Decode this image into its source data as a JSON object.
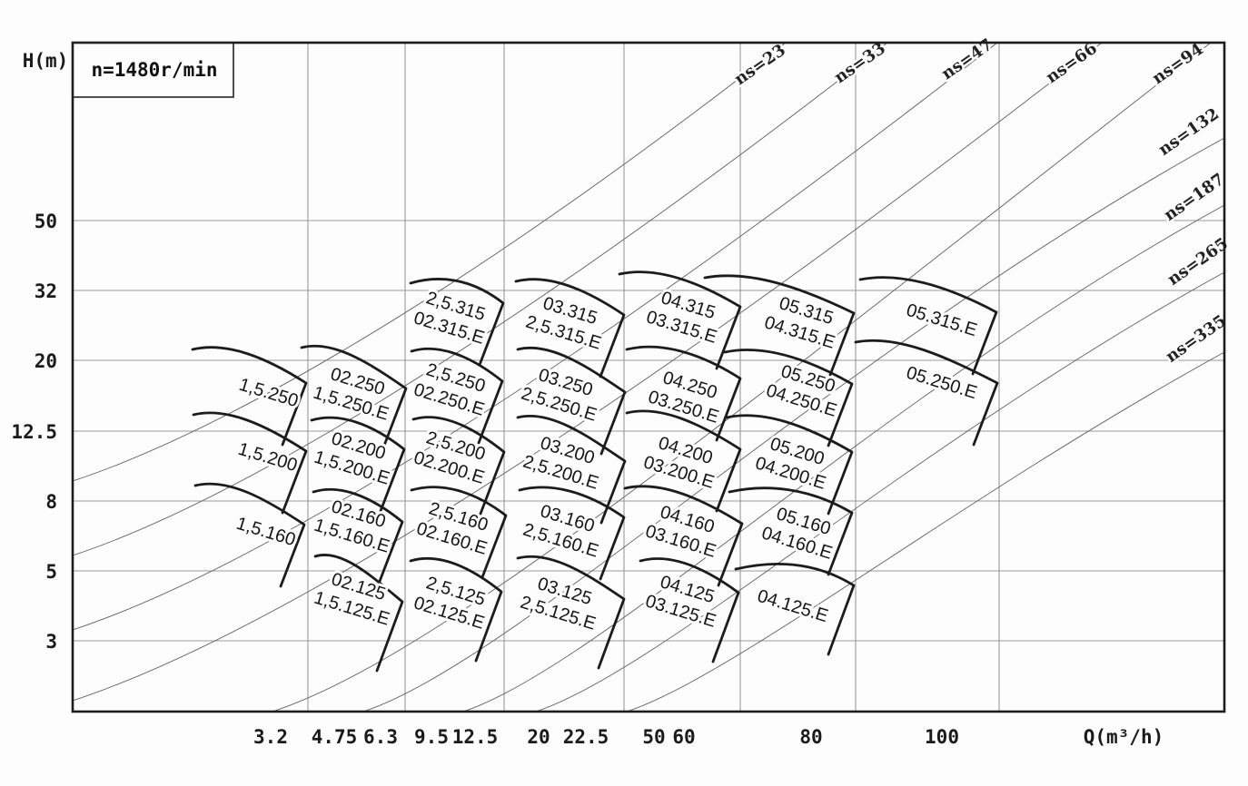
{
  "chart_data": {
    "type": "line",
    "subtype": "pump-selection-range-chart",
    "title": "n=1480r/min",
    "xlabel": "Q(m³/h)",
    "ylabel": "H(m)",
    "frame": {
      "x0": 80,
      "y0": 47,
      "x1": 1348,
      "y1": 784
    },
    "colors": {
      "bg": "#fdfdfd",
      "frame": "#1c1c1c",
      "grid": "#9a9a9a",
      "ns": "#5f5f5f",
      "cell": "#1c1c1c"
    },
    "grid": {
      "v": [
        339,
        446,
        555,
        687,
        815,
        942,
        1100
      ],
      "h": [
        243,
        320,
        397,
        475,
        552,
        629,
        706
      ]
    },
    "y_ticks": [
      {
        "label": "50",
        "y": 243
      },
      {
        "label": "32",
        "y": 320
      },
      {
        "label": "20",
        "y": 397
      },
      {
        "label": "12.5",
        "y": 475
      },
      {
        "label": "8",
        "y": 552
      },
      {
        "label": "5",
        "y": 629
      },
      {
        "label": "3",
        "y": 706
      }
    ],
    "x_ticks": [
      {
        "label": "3.2",
        "x": 298
      },
      {
        "label": "4.75",
        "x": 368
      },
      {
        "label": "6.3",
        "x": 419
      },
      {
        "label": "9.5",
        "x": 475
      },
      {
        "label": "12.5",
        "x": 523
      },
      {
        "label": "20",
        "x": 593
      },
      {
        "label": "22.5",
        "x": 645
      },
      {
        "label": "50",
        "x": 720
      },
      {
        "label": "60",
        "x": 753
      },
      {
        "label": "80",
        "x": 893
      },
      {
        "label": "100",
        "x": 1037
      }
    ],
    "ns_lines": [
      {
        "label": "ns=23",
        "lx": 840,
        "ly": 76,
        "x0": 80,
        "y0": 530,
        "x1": 865,
        "y1": 47,
        "exit": "top"
      },
      {
        "label": "ns=33",
        "lx": 950,
        "ly": 74,
        "x0": 80,
        "y0": 612,
        "x1": 977,
        "y1": 47,
        "exit": "top"
      },
      {
        "label": "ns=47",
        "lx": 1068,
        "ly": 70,
        "x0": 80,
        "y0": 694,
        "x1": 1098,
        "y1": 47,
        "exit": "top"
      },
      {
        "label": "ns=66",
        "lx": 1183,
        "ly": 74,
        "x0": 80,
        "y0": 772,
        "x1": 1213,
        "y1": 47,
        "exit": "top"
      },
      {
        "label": "ns=94",
        "lx": 1300,
        "ly": 75,
        "x0": 300,
        "y0": 784,
        "x1": 1333,
        "y1": 47,
        "exit": "top"
      },
      {
        "label": "ns=132",
        "lx": 1312,
        "ly": 150,
        "x0": 400,
        "y0": 784,
        "x1": 1348,
        "y1": 152,
        "exit": "right"
      },
      {
        "label": "ns=187",
        "lx": 1318,
        "ly": 222,
        "x0": 510,
        "y0": 784,
        "x1": 1348,
        "y1": 226,
        "exit": "right"
      },
      {
        "label": "ns=265",
        "lx": 1322,
        "ly": 293,
        "x0": 590,
        "y0": 784,
        "x1": 1348,
        "y1": 300,
        "exit": "right"
      },
      {
        "label": "ns=335",
        "lx": 1320,
        "ly": 378,
        "x0": 690,
        "y0": 784,
        "x1": 1348,
        "y1": 388,
        "exit": "right"
      }
    ],
    "cells": [
      {
        "labels": [
          "2,5.315",
          "02.315.E"
        ],
        "x1": 452,
        "y1": 312,
        "x2": 554,
        "y2": 334,
        "cx": 497,
        "cy": 353
      },
      {
        "labels": [
          "03.315",
          "2,5.315.E"
        ],
        "x1": 568,
        "y1": 310,
        "x2": 687,
        "y2": 347,
        "cx": 623,
        "cy": 358
      },
      {
        "labels": [
          "04.315",
          "03.315.E"
        ],
        "x1": 682,
        "y1": 302,
        "x2": 815,
        "y2": 338,
        "cx": 753,
        "cy": 352
      },
      {
        "labels": [
          "05.315",
          "04.315.E"
        ],
        "x1": 776,
        "y1": 306,
        "x2": 940,
        "y2": 345,
        "cx": 883,
        "cy": 358
      },
      {
        "labels": [
          "05.315.E"
        ],
        "x1": 947,
        "y1": 308,
        "x2": 1097,
        "y2": 344,
        "cx": 1037,
        "cy": 352
      },
      {
        "labels": [
          "1,5.250"
        ],
        "x1": 212,
        "y1": 385,
        "x2": 337,
        "y2": 422,
        "cx": 296,
        "cy": 432
      },
      {
        "labels": [
          "02.250",
          "1,5.250.E"
        ],
        "x1": 332,
        "y1": 383,
        "x2": 447,
        "y2": 428,
        "cx": 389,
        "cy": 436
      },
      {
        "labels": [
          "2,5.250",
          "02.250.E"
        ],
        "x1": 453,
        "y1": 387,
        "x2": 553,
        "y2": 420,
        "cx": 497,
        "cy": 432
      },
      {
        "labels": [
          "03.250",
          "2,5.250.E"
        ],
        "x1": 570,
        "y1": 385,
        "x2": 688,
        "y2": 432,
        "cx": 618,
        "cy": 437
      },
      {
        "labels": [
          "04.250",
          "03.250.E"
        ],
        "x1": 690,
        "y1": 385,
        "x2": 815,
        "y2": 417,
        "cx": 755,
        "cy": 440
      },
      {
        "labels": [
          "05.250",
          "04.250.E"
        ],
        "x1": 798,
        "y1": 388,
        "x2": 938,
        "y2": 423,
        "cx": 885,
        "cy": 433
      },
      {
        "labels": [
          "05.250.E"
        ],
        "x1": 942,
        "y1": 377,
        "x2": 1098,
        "y2": 422,
        "cx": 1037,
        "cy": 421
      },
      {
        "labels": [
          "1,5.200"
        ],
        "x1": 213,
        "y1": 457,
        "x2": 337,
        "y2": 497,
        "cx": 295,
        "cy": 503
      },
      {
        "labels": [
          "02.200",
          "1,5.200.E"
        ],
        "x1": 343,
        "y1": 463,
        "x2": 445,
        "y2": 495,
        "cx": 390,
        "cy": 507
      },
      {
        "labels": [
          "2,5.200",
          "02.200.E"
        ],
        "x1": 455,
        "y1": 462,
        "x2": 555,
        "y2": 498,
        "cx": 497,
        "cy": 507
      },
      {
        "labels": [
          "03.200",
          "2,5.200.E"
        ],
        "x1": 570,
        "y1": 460,
        "x2": 688,
        "y2": 508,
        "cx": 620,
        "cy": 512
      },
      {
        "labels": [
          "04.200",
          "03.200.E"
        ],
        "x1": 690,
        "y1": 455,
        "x2": 815,
        "y2": 495,
        "cx": 750,
        "cy": 512
      },
      {
        "labels": [
          "05.200",
          "04.200.E"
        ],
        "x1": 800,
        "y1": 460,
        "x2": 938,
        "y2": 498,
        "cx": 873,
        "cy": 513
      },
      {
        "labels": [
          "1,5.160"
        ],
        "x1": 215,
        "y1": 535,
        "x2": 335,
        "y2": 578,
        "cx": 293,
        "cy": 585
      },
      {
        "labels": [
          "02.160",
          "1,5.160.E"
        ],
        "x1": 345,
        "y1": 542,
        "x2": 443,
        "y2": 575,
        "cx": 390,
        "cy": 582
      },
      {
        "labels": [
          "2,5.160",
          "02.160.E"
        ],
        "x1": 453,
        "y1": 540,
        "x2": 557,
        "y2": 568,
        "cx": 500,
        "cy": 585
      },
      {
        "labels": [
          "03.160",
          "2,5.160.E"
        ],
        "x1": 572,
        "y1": 540,
        "x2": 687,
        "y2": 570,
        "cx": 620,
        "cy": 587
      },
      {
        "labels": [
          "04.160",
          "03.160.E"
        ],
        "x1": 688,
        "y1": 538,
        "x2": 817,
        "y2": 577,
        "cx": 752,
        "cy": 588
      },
      {
        "labels": [
          "05.160",
          "04.160.E"
        ],
        "x1": 803,
        "y1": 542,
        "x2": 938,
        "y2": 565,
        "cx": 880,
        "cy": 590
      },
      {
        "labels": [
          "02.125",
          "1,5.125.E"
        ],
        "x1": 347,
        "y1": 613,
        "x2": 443,
        "y2": 663,
        "cx": 390,
        "cy": 662,
        "long_edge": true
      },
      {
        "labels": [
          "2,5.125",
          "02.125.E"
        ],
        "x1": 452,
        "y1": 618,
        "x2": 552,
        "y2": 652,
        "cx": 497,
        "cy": 667,
        "long_edge": true
      },
      {
        "labels": [
          "03.125",
          "2,5.125.E"
        ],
        "x1": 570,
        "y1": 615,
        "x2": 687,
        "y2": 660,
        "cx": 617,
        "cy": 667,
        "long_edge": true
      },
      {
        "labels": [
          "04.125",
          "03.125.E"
        ],
        "x1": 705,
        "y1": 618,
        "x2": 813,
        "y2": 653,
        "cx": 752,
        "cy": 665,
        "long_edge": true
      },
      {
        "labels": [
          "04.125.E"
        ],
        "x1": 810,
        "y1": 627,
        "x2": 940,
        "y2": 645,
        "cx": 873,
        "cy": 667,
        "long_edge": true
      }
    ],
    "title_box": {
      "x": 80,
      "y": 47,
      "w": 177,
      "h": 60,
      "tx": 170,
      "ty": 84
    },
    "ylabel_pos": {
      "x": 50,
      "y": 74
    },
    "xlabel_pos": {
      "x": 1237,
      "y": 819
    },
    "tick_y_baseline": 819
  }
}
